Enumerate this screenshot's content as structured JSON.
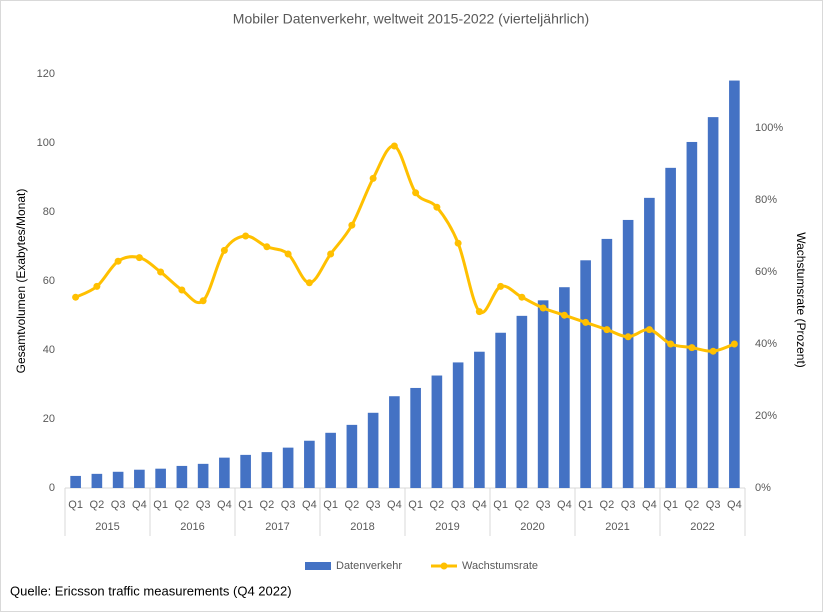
{
  "chart_data": {
    "type": "bar-line",
    "title": "Mobiler Datenverkehr, weltweit 2015-2022 (vierteljährlich)",
    "y_label": "Gesamtvolumen (Exabytes/Monat)",
    "y2_label": "Wachstumsrate (Prozent)",
    "source": "Quelle: Ericsson traffic measurements (Q4 2022)",
    "categories": [
      "Q1",
      "Q2",
      "Q3",
      "Q4",
      "Q1",
      "Q2",
      "Q3",
      "Q4",
      "Q1",
      "Q2",
      "Q3",
      "Q4",
      "Q1",
      "Q2",
      "Q3",
      "Q4",
      "Q1",
      "Q2",
      "Q3",
      "Q4",
      "Q1",
      "Q2",
      "Q3",
      "Q4",
      "Q1",
      "Q2",
      "Q3",
      "Q4",
      "Q1",
      "Q2",
      "Q3",
      "Q4"
    ],
    "years": [
      "2015",
      "2016",
      "2017",
      "2018",
      "2019",
      "2020",
      "2021",
      "2022"
    ],
    "series": [
      {
        "name": "Datenverkehr",
        "type": "bar",
        "color": "#4472c4",
        "values": [
          3.5,
          4.1,
          4.7,
          5.3,
          5.6,
          6.4,
          7.0,
          8.8,
          9.6,
          10.4,
          11.7,
          13.7,
          16.0,
          18.3,
          21.8,
          26.6,
          29.0,
          32.6,
          36.4,
          39.5,
          45.0,
          49.9,
          54.4,
          58.2,
          66.0,
          72.2,
          77.7,
          84.1,
          92.8,
          100.3,
          107.5,
          118.1
        ]
      },
      {
        "name": "Wachstumsrate",
        "type": "line",
        "axis": "y2",
        "color": "#ffc000",
        "values": [
          53,
          56,
          63,
          64,
          60,
          55,
          52,
          66,
          70,
          67,
          65,
          57,
          65,
          73,
          86,
          95,
          82,
          78,
          68,
          49,
          56,
          53,
          50,
          48,
          46,
          44,
          42,
          44,
          40,
          39,
          38,
          40
        ]
      }
    ],
    "ylim": [
      0,
      120
    ],
    "yticks": [
      0,
      20,
      40,
      60,
      80,
      100,
      120
    ],
    "y2lim": [
      0,
      115
    ],
    "y2ticks": [
      {
        "value": 0,
        "label": "0%"
      },
      {
        "value": 20,
        "label": "20%"
      },
      {
        "value": 40,
        "label": "40%"
      },
      {
        "value": 60,
        "label": "60%"
      },
      {
        "value": 80,
        "label": "80%"
      },
      {
        "value": 100,
        "label": "100%"
      }
    ],
    "legend": "bottom"
  }
}
